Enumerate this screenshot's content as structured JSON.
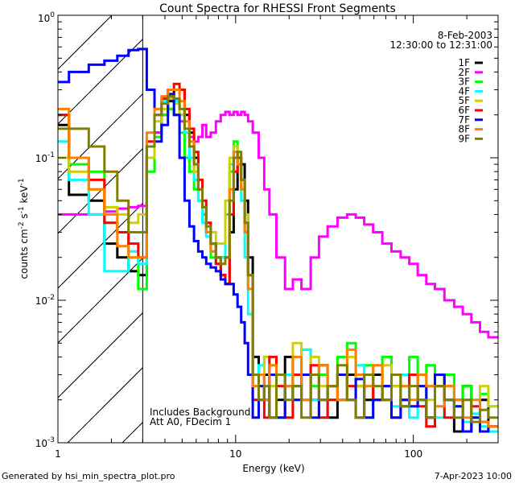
{
  "chart_data": {
    "type": "line",
    "title": "Count Spectra for RHESSI Front Segments",
    "xlabel": "Energy (keV)",
    "ylabel": "counts cm-2 s-1 keV-1",
    "xscale": "log",
    "yscale": "log",
    "xlim": [
      1,
      300
    ],
    "ylim": [
      0.001,
      1
    ],
    "x_tick_labels": [
      "1",
      "10",
      "100"
    ],
    "y_tick_labels": [
      {
        "base": "10",
        "exp": "0"
      },
      {
        "base": "10",
        "exp": "-1"
      },
      {
        "base": "10",
        "exp": "-2"
      },
      {
        "base": "10",
        "exp": "-3"
      }
    ],
    "date": "8-Feb-2003",
    "time_range": "12:30:00 to 12:31:00",
    "annotations": [
      "Includes Background",
      "Att A0, FDecim 1"
    ],
    "hatched_region_keV": [
      1,
      3
    ],
    "legend_position": "top-right",
    "x": [
      1,
      1.33,
      1.67,
      2,
      2.33,
      2.67,
      3,
      3.33,
      3.67,
      4,
      4.33,
      4.67,
      5,
      5.33,
      5.67,
      6,
      6.33,
      6.67,
      7,
      7.5,
      8,
      8.5,
      9,
      9.5,
      10,
      10.5,
      11,
      11.5,
      12,
      13,
      14,
      15,
      16,
      18,
      20,
      22,
      25,
      28,
      31,
      35,
      40,
      45,
      50,
      56,
      63,
      71,
      80,
      90,
      100,
      112,
      125,
      140,
      160,
      180,
      200,
      225,
      250,
      280
    ],
    "series": [
      {
        "name": "1F",
        "color": "#000000",
        "values": [
          0.17,
          0.055,
          0.05,
          0.025,
          0.02,
          0.016,
          0.015,
          0.1,
          0.15,
          0.2,
          0.25,
          0.3,
          0.3,
          0.2,
          0.15,
          0.1,
          0.06,
          0.04,
          0.03,
          0.025,
          0.02,
          0.015,
          0.013,
          0.03,
          0.06,
          0.1,
          0.09,
          0.05,
          0.02,
          0.004,
          0.002,
          0.003,
          0.0015,
          0.002,
          0.004,
          0.0025,
          0.003,
          0.002,
          0.0035,
          0.0015,
          0.002,
          0.003,
          0.0025,
          0.002,
          0.003,
          0.002,
          0.0025,
          0.0018,
          0.003,
          0.002,
          0.0015,
          0.003,
          0.002,
          0.0012,
          0.0025,
          0.0015,
          0.002,
          0.0012
        ]
      },
      {
        "name": "2F",
        "color": "#ff00ff",
        "values": [
          0.04,
          0.04,
          0.04,
          0.042,
          0.044,
          0.045,
          0.046,
          0.1,
          0.15,
          0.2,
          0.22,
          0.2,
          0.18,
          0.15,
          0.14,
          0.13,
          0.14,
          0.17,
          0.14,
          0.15,
          0.18,
          0.2,
          0.21,
          0.2,
          0.21,
          0.2,
          0.21,
          0.2,
          0.18,
          0.15,
          0.1,
          0.06,
          0.04,
          0.02,
          0.012,
          0.014,
          0.012,
          0.02,
          0.028,
          0.033,
          0.038,
          0.04,
          0.038,
          0.034,
          0.03,
          0.025,
          0.022,
          0.02,
          0.018,
          0.015,
          0.013,
          0.012,
          0.01,
          0.009,
          0.008,
          0.007,
          0.006,
          0.0055
        ]
      },
      {
        "name": "3F",
        "color": "#00ff00",
        "values": [
          0.2,
          0.09,
          0.08,
          0.035,
          0.03,
          0.02,
          0.012,
          0.08,
          0.14,
          0.2,
          0.22,
          0.2,
          0.15,
          0.1,
          0.08,
          0.06,
          0.05,
          0.04,
          0.03,
          0.02,
          0.018,
          0.02,
          0.04,
          0.08,
          0.13,
          0.1,
          0.06,
          0.03,
          0.012,
          0.003,
          0.0025,
          0.002,
          0.0035,
          0.0015,
          0.003,
          0.002,
          0.0045,
          0.0025,
          0.003,
          0.002,
          0.004,
          0.005,
          0.003,
          0.0035,
          0.002,
          0.004,
          0.003,
          0.0025,
          0.004,
          0.002,
          0.0035,
          0.0025,
          0.003,
          0.002,
          0.0025,
          0.0015,
          0.0022,
          0.0018
        ]
      },
      {
        "name": "4F",
        "color": "#00ffff",
        "values": [
          0.13,
          0.07,
          0.04,
          0.016,
          0.016,
          0.022,
          0.018,
          0.12,
          0.2,
          0.25,
          0.28,
          0.25,
          0.2,
          0.15,
          0.1,
          0.07,
          0.05,
          0.035,
          0.028,
          0.022,
          0.018,
          0.02,
          0.05,
          0.09,
          0.12,
          0.09,
          0.05,
          0.02,
          0.008,
          0.002,
          0.0035,
          0.004,
          0.0025,
          0.0015,
          0.003,
          0.002,
          0.0045,
          0.002,
          0.0015,
          0.0025,
          0.003,
          0.002,
          0.0035,
          0.0015,
          0.002,
          0.0025,
          0.0018,
          0.003,
          0.0015,
          0.002,
          0.0025,
          0.0015,
          0.002,
          0.0018,
          0.0014,
          0.0016,
          0.0013,
          0.0012
        ]
      },
      {
        "name": "5F",
        "color": "#d0d000",
        "values": [
          0.1,
          0.08,
          0.06,
          0.045,
          0.04,
          0.035,
          0.04,
          0.1,
          0.18,
          0.22,
          0.26,
          0.24,
          0.2,
          0.16,
          0.12,
          0.08,
          0.06,
          0.045,
          0.035,
          0.03,
          0.025,
          0.025,
          0.05,
          0.1,
          0.12,
          0.1,
          0.07,
          0.04,
          0.015,
          0.003,
          0.002,
          0.004,
          0.0025,
          0.003,
          0.0015,
          0.005,
          0.003,
          0.004,
          0.0025,
          0.002,
          0.003,
          0.004,
          0.0025,
          0.003,
          0.002,
          0.0035,
          0.0025,
          0.002,
          0.003,
          0.0025,
          0.002,
          0.003,
          0.0025,
          0.0018,
          0.002,
          0.0015,
          0.0025,
          0.0018
        ]
      },
      {
        "name": "6F",
        "color": "#ff0000",
        "values": [
          0.2,
          0.1,
          0.07,
          0.035,
          0.03,
          0.025,
          0.02,
          0.13,
          0.2,
          0.26,
          0.3,
          0.33,
          0.3,
          0.22,
          0.16,
          0.11,
          0.07,
          0.05,
          0.035,
          0.025,
          0.018,
          0.015,
          0.013,
          0.04,
          0.08,
          0.1,
          0.07,
          0.03,
          0.015,
          0.002,
          0.003,
          0.0015,
          0.004,
          0.0025,
          0.0015,
          0.003,
          0.002,
          0.0035,
          0.0015,
          0.002,
          0.003,
          0.0025,
          0.0015,
          0.003,
          0.002,
          0.0025,
          0.0015,
          0.002,
          0.003,
          0.0018,
          0.0013,
          0.0025,
          0.0015,
          0.002,
          0.0012,
          0.0018,
          0.0014,
          0.0013
        ]
      },
      {
        "name": "7F",
        "color": "#0000ff",
        "values": [
          0.34,
          0.4,
          0.45,
          0.48,
          0.52,
          0.57,
          0.58,
          0.3,
          0.13,
          0.17,
          0.28,
          0.2,
          0.1,
          0.05,
          0.033,
          0.026,
          0.022,
          0.02,
          0.018,
          0.017,
          0.016,
          0.014,
          0.013,
          0.013,
          0.011,
          0.009,
          0.007,
          0.005,
          0.003,
          0.0015,
          0.0025,
          0.002,
          0.003,
          0.0015,
          0.0025,
          0.002,
          0.003,
          0.0015,
          0.002,
          0.0025,
          0.003,
          0.002,
          0.0028,
          0.0015,
          0.002,
          0.0025,
          0.0015,
          0.002,
          0.0018,
          0.0025,
          0.0015,
          0.003,
          0.002,
          0.0018,
          0.0012,
          0.0015,
          0.0012,
          0.0013
        ]
      },
      {
        "name": "8F",
        "color": "#ff8000",
        "values": [
          0.22,
          0.1,
          0.06,
          0.04,
          0.024,
          0.02,
          0.02,
          0.15,
          0.22,
          0.27,
          0.3,
          0.3,
          0.25,
          0.18,
          0.13,
          0.09,
          0.06,
          0.045,
          0.03,
          0.022,
          0.02,
          0.018,
          0.02,
          0.06,
          0.11,
          0.09,
          0.06,
          0.03,
          0.012,
          0.0025,
          0.003,
          0.002,
          0.0035,
          0.003,
          0.0025,
          0.004,
          0.002,
          0.003,
          0.0035,
          0.0025,
          0.002,
          0.0045,
          0.003,
          0.0025,
          0.0035,
          0.002,
          0.003,
          0.0025,
          0.002,
          0.003,
          0.0025,
          0.0018,
          0.0025,
          0.002,
          0.0015,
          0.002,
          0.0014,
          0.0013
        ]
      },
      {
        "name": "9F",
        "color": "#808000",
        "values": [
          0.16,
          0.16,
          0.12,
          0.08,
          0.05,
          0.03,
          0.03,
          0.12,
          0.2,
          0.24,
          0.27,
          0.26,
          0.22,
          0.16,
          0.12,
          0.09,
          0.06,
          0.045,
          0.033,
          0.025,
          0.02,
          0.018,
          0.02,
          0.05,
          0.1,
          0.11,
          0.07,
          0.035,
          0.015,
          0.003,
          0.002,
          0.0025,
          0.0015,
          0.003,
          0.002,
          0.0025,
          0.0015,
          0.003,
          0.002,
          0.0025,
          0.0035,
          0.002,
          0.0015,
          0.003,
          0.0025,
          0.002,
          0.003,
          0.0018,
          0.0025,
          0.002,
          0.0015,
          0.0025,
          0.002,
          0.0015,
          0.002,
          0.0014,
          0.0017,
          0.0015
        ]
      }
    ]
  },
  "footer": {
    "left": "Generated by hsi_min_spectra_plot.pro",
    "right": "7-Apr-2023 10:00"
  }
}
